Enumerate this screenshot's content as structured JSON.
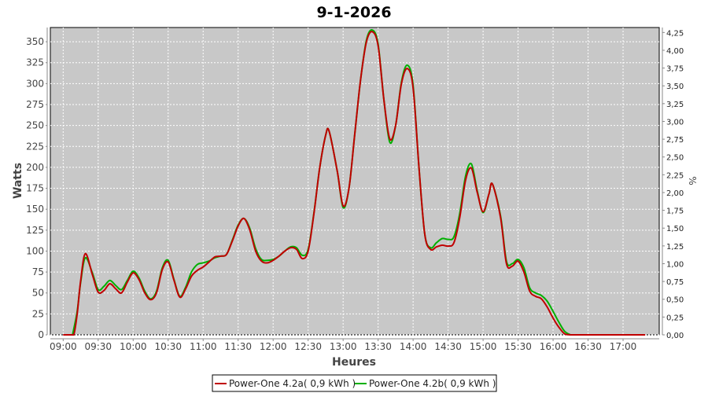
{
  "chart_data": {
    "type": "line",
    "title": "9-1-2026",
    "xlabel": "Heures",
    "ylabel": "Watts",
    "y2label": "%",
    "xlim": [
      "08:49",
      "17:31"
    ],
    "ylim": [
      0,
      367
    ],
    "y2lim": [
      0,
      4.32
    ],
    "x_ticks": [
      "09:00",
      "09:30",
      "10:00",
      "10:30",
      "11:00",
      "11:30",
      "12:00",
      "12:30",
      "13:00",
      "13:30",
      "14:00",
      "14:30",
      "15:00",
      "15:30",
      "16:00",
      "16:30",
      "17:00"
    ],
    "y_ticks": [
      "0",
      "25",
      "50",
      "75",
      "100",
      "125",
      "150",
      "175",
      "200",
      "225",
      "250",
      "275",
      "300",
      "325",
      "350"
    ],
    "y2_ticks": [
      "0,00",
      "0,25",
      "0,50",
      "0,75",
      "1,00",
      "1,25",
      "1,50",
      "1,75",
      "2,00",
      "2,25",
      "2,50",
      "2,75",
      "3,00",
      "3,25",
      "3,50",
      "3,75",
      "4,00",
      "4,25"
    ],
    "grid": true,
    "legend_position": "bottom",
    "plot_background": "#c8c8c8",
    "series": [
      {
        "name": "Power-One 4.2a( 0,9 kWh )",
        "color": "#c00000",
        "points": [
          [
            "09:00",
            0
          ],
          [
            "09:05",
            0
          ],
          [
            "09:09",
            0
          ],
          [
            "09:12",
            25
          ],
          [
            "09:15",
            65
          ],
          [
            "09:19",
            97
          ],
          [
            "09:25",
            72
          ],
          [
            "09:30",
            51
          ],
          [
            "09:35",
            53
          ],
          [
            "09:40",
            61
          ],
          [
            "09:45",
            55
          ],
          [
            "09:50",
            50
          ],
          [
            "09:55",
            63
          ],
          [
            "10:00",
            74
          ],
          [
            "10:05",
            66
          ],
          [
            "10:10",
            50
          ],
          [
            "10:15",
            42
          ],
          [
            "10:20",
            50
          ],
          [
            "10:25",
            78
          ],
          [
            "10:30",
            87
          ],
          [
            "10:35",
            65
          ],
          [
            "10:40",
            45
          ],
          [
            "10:45",
            55
          ],
          [
            "10:50",
            70
          ],
          [
            "10:55",
            77
          ],
          [
            "11:00",
            81
          ],
          [
            "11:05",
            87
          ],
          [
            "11:10",
            93
          ],
          [
            "11:15",
            94
          ],
          [
            "11:20",
            96
          ],
          [
            "11:25",
            112
          ],
          [
            "11:30",
            130
          ],
          [
            "11:35",
            139
          ],
          [
            "11:40",
            125
          ],
          [
            "11:45",
            100
          ],
          [
            "11:50",
            88
          ],
          [
            "11:55",
            86
          ],
          [
            "12:00",
            89
          ],
          [
            "12:05",
            94
          ],
          [
            "12:10",
            100
          ],
          [
            "12:15",
            104
          ],
          [
            "12:20",
            102
          ],
          [
            "12:25",
            91
          ],
          [
            "12:30",
            100
          ],
          [
            "12:35",
            145
          ],
          [
            "12:40",
            200
          ],
          [
            "12:45",
            238
          ],
          [
            "12:48",
            243
          ],
          [
            "12:55",
            195
          ],
          [
            "13:00",
            154
          ],
          [
            "13:05",
            175
          ],
          [
            "13:10",
            240
          ],
          [
            "13:15",
            305
          ],
          [
            "13:20",
            350
          ],
          [
            "13:25",
            362
          ],
          [
            "13:30",
            345
          ],
          [
            "13:35",
            280
          ],
          [
            "13:40",
            234
          ],
          [
            "13:45",
            250
          ],
          [
            "13:50",
            300
          ],
          [
            "13:55",
            318
          ],
          [
            "14:00",
            295
          ],
          [
            "14:05",
            200
          ],
          [
            "14:10",
            120
          ],
          [
            "14:15",
            102
          ],
          [
            "14:20",
            105
          ],
          [
            "14:25",
            107
          ],
          [
            "14:30",
            106
          ],
          [
            "14:35",
            110
          ],
          [
            "14:40",
            140
          ],
          [
            "14:45",
            185
          ],
          [
            "14:50",
            199
          ],
          [
            "14:55",
            170
          ],
          [
            "15:00",
            147
          ],
          [
            "15:05",
            168
          ],
          [
            "15:08",
            180
          ],
          [
            "15:15",
            140
          ],
          [
            "15:20",
            85
          ],
          [
            "15:25",
            82
          ],
          [
            "15:30",
            88
          ],
          [
            "15:35",
            75
          ],
          [
            "15:40",
            52
          ],
          [
            "15:45",
            46
          ],
          [
            "15:50",
            43
          ],
          [
            "15:55",
            33
          ],
          [
            "16:00",
            20
          ],
          [
            "16:05",
            9
          ],
          [
            "16:10",
            1
          ],
          [
            "16:15",
            0
          ],
          [
            "16:30",
            0
          ],
          [
            "17:00",
            0
          ],
          [
            "17:19",
            0
          ]
        ]
      },
      {
        "name": "Power-One 4.2b( 0,9 kWh )",
        "color": "#00b000",
        "points": [
          [
            "09:08",
            0
          ],
          [
            "09:12",
            28
          ],
          [
            "09:15",
            63
          ],
          [
            "09:19",
            92
          ],
          [
            "09:25",
            74
          ],
          [
            "09:30",
            54
          ],
          [
            "09:35",
            58
          ],
          [
            "09:40",
            65
          ],
          [
            "09:45",
            59
          ],
          [
            "09:50",
            54
          ],
          [
            "09:55",
            65
          ],
          [
            "10:00",
            76
          ],
          [
            "10:05",
            68
          ],
          [
            "10:10",
            52
          ],
          [
            "10:15",
            43
          ],
          [
            "10:20",
            52
          ],
          [
            "10:25",
            80
          ],
          [
            "10:30",
            89
          ],
          [
            "10:35",
            66
          ],
          [
            "10:40",
            46
          ],
          [
            "10:45",
            57
          ],
          [
            "10:50",
            75
          ],
          [
            "10:55",
            84
          ],
          [
            "11:00",
            86
          ],
          [
            "11:05",
            88
          ],
          [
            "11:10",
            92
          ],
          [
            "11:15",
            94
          ],
          [
            "11:20",
            96
          ],
          [
            "11:25",
            113
          ],
          [
            "11:30",
            131
          ],
          [
            "11:35",
            139
          ],
          [
            "11:40",
            127
          ],
          [
            "11:45",
            103
          ],
          [
            "11:50",
            90
          ],
          [
            "11:55",
            89
          ],
          [
            "12:00",
            90
          ],
          [
            "12:05",
            94
          ],
          [
            "12:10",
            100
          ],
          [
            "12:15",
            105
          ],
          [
            "12:20",
            104
          ],
          [
            "12:25",
            95
          ],
          [
            "12:30",
            102
          ],
          [
            "12:35",
            146
          ],
          [
            "12:40",
            200
          ],
          [
            "12:45",
            238
          ],
          [
            "12:48",
            243
          ],
          [
            "12:55",
            195
          ],
          [
            "13:00",
            152
          ],
          [
            "13:05",
            175
          ],
          [
            "13:10",
            240
          ],
          [
            "13:15",
            305
          ],
          [
            "13:20",
            352
          ],
          [
            "13:25",
            364
          ],
          [
            "13:30",
            347
          ],
          [
            "13:35",
            280
          ],
          [
            "13:40",
            230
          ],
          [
            "13:45",
            250
          ],
          [
            "13:50",
            302
          ],
          [
            "13:55",
            322
          ],
          [
            "14:00",
            298
          ],
          [
            "14:05",
            200
          ],
          [
            "14:10",
            120
          ],
          [
            "14:15",
            104
          ],
          [
            "14:20",
            110
          ],
          [
            "14:25",
            115
          ],
          [
            "14:30",
            114
          ],
          [
            "14:35",
            117
          ],
          [
            "14:40",
            145
          ],
          [
            "14:45",
            190
          ],
          [
            "14:50",
            204
          ],
          [
            "14:55",
            172
          ],
          [
            "15:00",
            146
          ],
          [
            "15:05",
            168
          ],
          [
            "15:08",
            180
          ],
          [
            "15:15",
            142
          ],
          [
            "15:20",
            88
          ],
          [
            "15:25",
            85
          ],
          [
            "15:30",
            90
          ],
          [
            "15:35",
            80
          ],
          [
            "15:40",
            56
          ],
          [
            "15:45",
            50
          ],
          [
            "15:50",
            47
          ],
          [
            "15:55",
            40
          ],
          [
            "16:00",
            28
          ],
          [
            "16:05",
            15
          ],
          [
            "16:10",
            4
          ],
          [
            "16:15",
            0
          ]
        ]
      }
    ]
  }
}
